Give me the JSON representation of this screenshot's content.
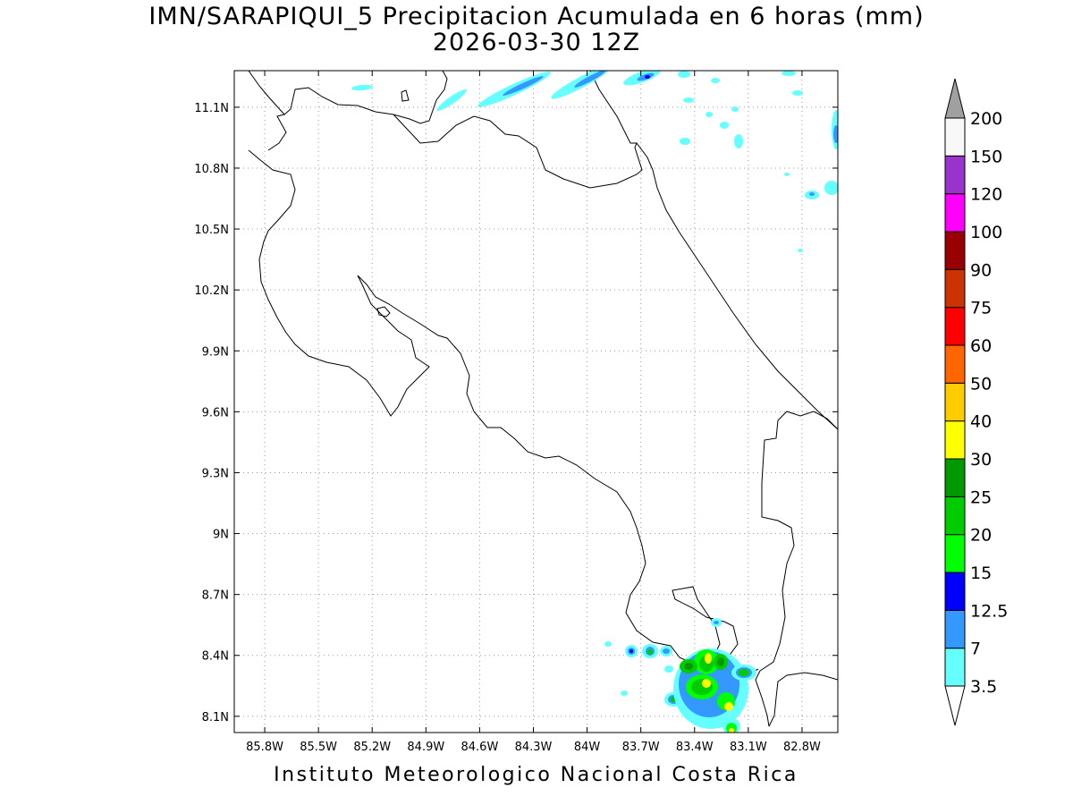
{
  "title": {
    "line1": "IMN/SARAPIQUI_5 Precipitacion Acumulada en 6 horas (mm)",
    "line2": "2026-03-30 12Z"
  },
  "credit": "Instituto Meteorologico Nacional Costa Rica",
  "map": {
    "lon_range": [
      -85.97,
      -82.6
    ],
    "lat_range": [
      8.02,
      11.28
    ],
    "lon_ticks": [
      {
        "value": -85.8,
        "label": "85.8W"
      },
      {
        "value": -85.5,
        "label": "85.5W"
      },
      {
        "value": -85.2,
        "label": "85.2W"
      },
      {
        "value": -84.9,
        "label": "84.9W"
      },
      {
        "value": -84.6,
        "label": "84.6W"
      },
      {
        "value": -84.3,
        "label": "84.3W"
      },
      {
        "value": -84.0,
        "label": "84W"
      },
      {
        "value": -83.7,
        "label": "83.7W"
      },
      {
        "value": -83.4,
        "label": "83.4W"
      },
      {
        "value": -83.1,
        "label": "83.1W"
      },
      {
        "value": -82.8,
        "label": "82.8W"
      }
    ],
    "lat_ticks": [
      {
        "value": 8.1,
        "label": "8.1N"
      },
      {
        "value": 8.4,
        "label": "8.4N"
      },
      {
        "value": 8.7,
        "label": "8.7N"
      },
      {
        "value": 9.0,
        "label": "9N"
      },
      {
        "value": 9.3,
        "label": "9.3N"
      },
      {
        "value": 9.6,
        "label": "9.6N"
      },
      {
        "value": 9.9,
        "label": "9.9N"
      },
      {
        "value": 10.2,
        "label": "10.2N"
      },
      {
        "value": 10.5,
        "label": "10.5N"
      },
      {
        "value": 10.8,
        "label": "10.8N"
      },
      {
        "value": 11.1,
        "label": "11.1N"
      }
    ],
    "grid": "dotted"
  },
  "colorbar": {
    "levels": [
      "3.5",
      "7",
      "12.5",
      "15",
      "20",
      "25",
      "30",
      "40",
      "50",
      "60",
      "75",
      "90",
      "100",
      "120",
      "150",
      "200"
    ],
    "colors": [
      "#66ffff",
      "#3399ff",
      "#0000ff",
      "#00ff00",
      "#00cc00",
      "#009900",
      "#ffff00",
      "#ffcc00",
      "#ff6600",
      "#ff0000",
      "#cc3300",
      "#990000",
      "#ff00ff",
      "#9933cc",
      "#f8f8f8"
    ],
    "upper_extension_color": "#a0a0a0",
    "lower_extension_color": "#ffffff"
  }
}
